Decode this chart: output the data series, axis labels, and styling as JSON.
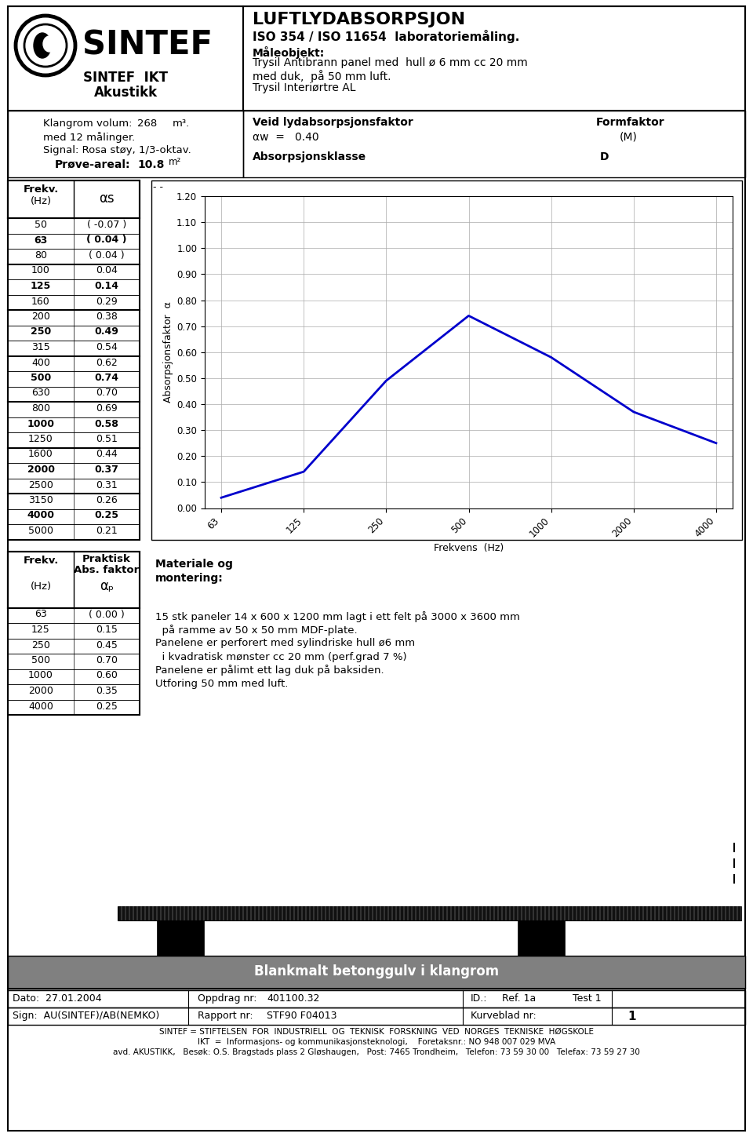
{
  "title": "LUFTLYDABSORPSJON",
  "subtitle": "ISO 354 / ISO 11654  laboratoriemåling.",
  "maleobjekt_label": "Måleobjekt:",
  "maleobjekt_line1": "Trysil Antibrann panel med  hull ø 6 mm cc 20 mm",
  "maleobjekt_line2": "med duk,  på 50 mm luft.",
  "maleobjekt_line3": "Trysil Interiørtre AL",
  "sintef_ikt": "SINTEF  IKT",
  "akustikk": "Akustikk",
  "klangrom_volum_parts": [
    "Klangrom volum:",
    "268",
    "m³."
  ],
  "med_12": "med 12 målinger.",
  "signal": "Signal: Rosa støy, 1/3-oktav.",
  "prove_areal_label": "Prøve-areal:",
  "prove_areal_val": "10.8",
  "prove_areal_unit": "m²",
  "veid_label": "Veid lydabsorpsjonsfaktor",
  "formfaktor_label": "Formfaktor",
  "alpha_w_line": "αw  =   0.40",
  "formfaktor_val": "(M)",
  "absorpsjonsklasse_label": "Absorpsjonsklasse",
  "absorpsjonsklasse_val": "D",
  "table1_data": [
    [
      "50",
      "( -0.07 )",
      false
    ],
    [
      "63",
      "( 0.04 )",
      true
    ],
    [
      "80",
      "( 0.04 )",
      false
    ],
    [
      "100",
      "0.04",
      false
    ],
    [
      "125",
      "0.14",
      true
    ],
    [
      "160",
      "0.29",
      false
    ],
    [
      "200",
      "0.38",
      false
    ],
    [
      "250",
      "0.49",
      true
    ],
    [
      "315",
      "0.54",
      false
    ],
    [
      "400",
      "0.62",
      false
    ],
    [
      "500",
      "0.74",
      true
    ],
    [
      "630",
      "0.70",
      false
    ],
    [
      "800",
      "0.69",
      false
    ],
    [
      "1000",
      "0.58",
      true
    ],
    [
      "1250",
      "0.51",
      false
    ],
    [
      "1600",
      "0.44",
      false
    ],
    [
      "2000",
      "0.37",
      true
    ],
    [
      "2500",
      "0.31",
      false
    ],
    [
      "3150",
      "0.26",
      false
    ],
    [
      "4000",
      "0.25",
      true
    ],
    [
      "5000",
      "0.21",
      false
    ]
  ],
  "table1_thick_before": [
    0,
    3,
    6,
    9,
    12,
    15,
    18
  ],
  "table2_data": [
    [
      "63",
      "( 0.00 )"
    ],
    [
      "125",
      "0.15"
    ],
    [
      "250",
      "0.45"
    ],
    [
      "500",
      "0.70"
    ],
    [
      "1000",
      "0.60"
    ],
    [
      "2000",
      "0.35"
    ],
    [
      "4000",
      "0.25"
    ]
  ],
  "materiale_title_line1": "Materiale og",
  "materiale_title_line2": "montering:",
  "materiale_text": [
    "15 stk paneler 14 x 600 x 1200 mm lagt i ett felt på 3000 x 3600 mm",
    "  på ramme av 50 x 50 mm MDF-plate.",
    "Panelene er perforert med sylindriske hull ø6 mm",
    "  i kvadratisk mønster cc 20 mm (perf.grad 7 %)",
    "Panelene er pålimt ett lag duk på baksiden.",
    "Utforing 50 mm med luft."
  ],
  "plot_freqs_labels": [
    "63",
    "125",
    "250",
    "500",
    "1000",
    "2000",
    "4000"
  ],
  "plot_alpha": [
    0.04,
    0.14,
    0.49,
    0.74,
    0.58,
    0.37,
    0.25
  ],
  "plot_ylabel": "Absorpsjonsfaktor  α",
  "plot_xlabel": "Frekvens  (Hz)",
  "plot_ylim": [
    0.0,
    1.2
  ],
  "plot_yticks": [
    0.0,
    0.1,
    0.2,
    0.3,
    0.4,
    0.5,
    0.6,
    0.7,
    0.8,
    0.9,
    1.0,
    1.1,
    1.2
  ],
  "plot_line_color": "#0000cc",
  "floor_label": "Blankmalt betonggulv i klangrom",
  "dato_label": "Dato:  27.01.2004",
  "oppdrag_label": "Oppdrag nr:",
  "oppdrag_val": "401100.32",
  "id_label": "ID.:",
  "ref_label": "Ref. 1a",
  "test_label": "Test 1",
  "sign_label": "Sign:  AU(SINTEF)/AB(NEMKO)",
  "rapport_label": "Rapport nr:",
  "rapport_val": "STF90 F04013",
  "kurveblad_label": "Kurveblad nr:",
  "kurveblad_val": "1",
  "footer1": "SINTEF = STIFTELSEN  FOR  INDUSTRIELL  OG  TEKNISK  FORSKNING  VED  NORGES  TEKNISKE  HØGSKOLE",
  "footer2": "IKT  =  Informasjons- og kommunikasjonsteknologi,    Foretaksnr.: NO 948 007 029 MVA",
  "footer3": "avd. AKUSTIKK,   Besøk: O.S. Bragstads plass 2 Gløshaugen,   Post: 7465 Trondheim,   Telefon: 73 59 30 00   Telefax: 73 59 27 30"
}
